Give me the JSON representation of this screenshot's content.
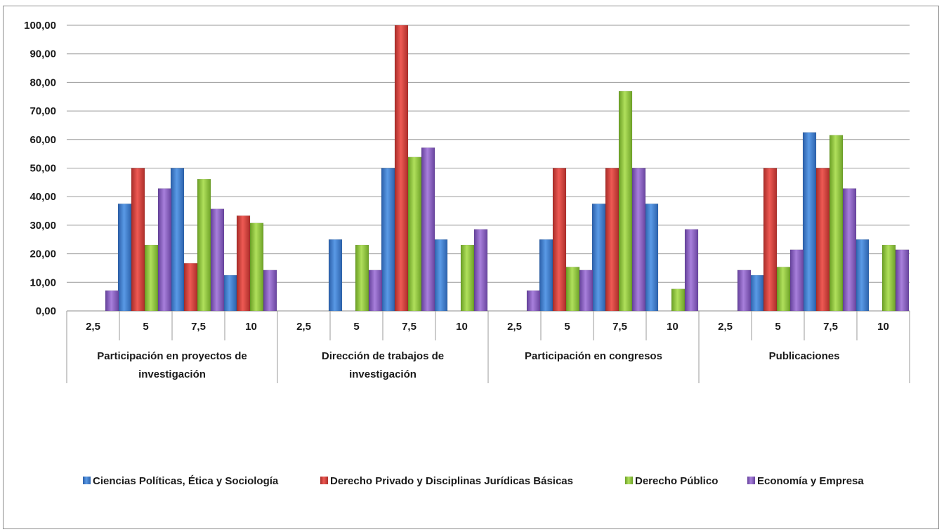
{
  "chart_data": {
    "type": "bar",
    "ylim": [
      0,
      100
    ],
    "yticks": [
      "0,00",
      "10,00",
      "20,00",
      "30,00",
      "40,00",
      "50,00",
      "60,00",
      "70,00",
      "80,00",
      "90,00",
      "100,00"
    ],
    "grid": true,
    "legend_position": "bottom",
    "groups": [
      {
        "label_lines": [
          "Participación en proyectos de",
          "investigación"
        ],
        "categories": [
          "2,5",
          "5",
          "7,5",
          "10"
        ]
      },
      {
        "label_lines": [
          "Dirección de trabajos de",
          "investigación"
        ],
        "categories": [
          "2,5",
          "5",
          "7,5",
          "10"
        ]
      },
      {
        "label_lines": [
          "Participación en congresos"
        ],
        "categories": [
          "2,5",
          "5",
          "7,5",
          "10"
        ]
      },
      {
        "label_lines": [
          "Publicaciones"
        ],
        "categories": [
          "2,5",
          "5",
          "7,5",
          "10"
        ]
      }
    ],
    "series": [
      {
        "name": "Ciencias Políticas, Ética y Sociología",
        "color": "#3c78c8",
        "values": [
          0,
          37.5,
          50,
          12.5,
          0,
          25,
          50,
          25,
          0,
          25,
          37.5,
          37.5,
          0,
          12.5,
          62.5,
          25
        ]
      },
      {
        "name": "Derecho Privado y Disciplinas Jurídicas Básicas",
        "color": "#d6403a",
        "values": [
          0,
          50,
          16.67,
          33.33,
          0,
          0,
          100,
          0,
          0,
          50,
          50,
          0,
          0,
          50,
          50,
          0
        ]
      },
      {
        "name": "Derecho Público",
        "color": "#8cc43c",
        "values": [
          0,
          23.08,
          46.15,
          30.77,
          0,
          23.08,
          53.85,
          23.08,
          0,
          15.38,
          76.92,
          7.69,
          0,
          15.38,
          61.54,
          23.08
        ]
      },
      {
        "name": "Economía y Empresa",
        "color": "#8a5cc0",
        "values": [
          7.14,
          42.86,
          35.71,
          14.29,
          0,
          14.29,
          57.14,
          28.57,
          7.14,
          14.29,
          50,
          28.57,
          14.29,
          21.43,
          42.86,
          21.43
        ]
      }
    ]
  }
}
